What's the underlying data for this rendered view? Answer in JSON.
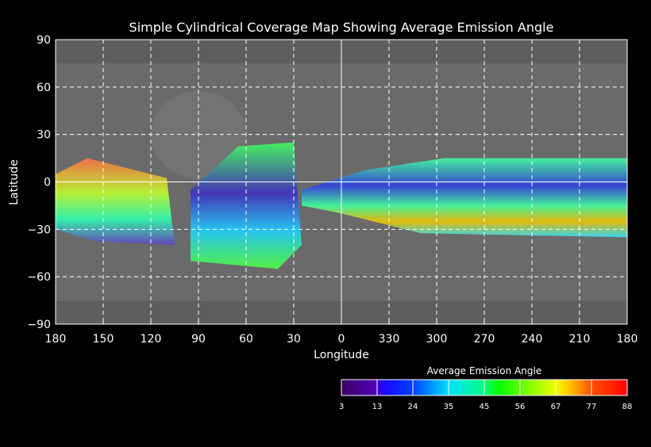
{
  "chart_data": {
    "type": "heatmap",
    "title": "Simple Cylindrical Coverage Map Showing Average Emission Angle",
    "xlabel": "Longitude",
    "ylabel": "Latitude",
    "xlim": [
      180,
      -180
    ],
    "ylim": [
      -90,
      90
    ],
    "x_ticks": [
      "180",
      "150",
      "120",
      "90",
      "60",
      "30",
      "0",
      "330",
      "300",
      "270",
      "240",
      "210",
      "180"
    ],
    "y_ticks": [
      "90",
      "60",
      "30",
      "0",
      "-30",
      "-60",
      "-90"
    ],
    "y_tick_values": [
      90,
      60,
      30,
      0,
      -30,
      -60,
      -90
    ],
    "grid": true,
    "colorbar": {
      "title": "Average Emission Angle",
      "ticks": [
        "3",
        "13",
        "24",
        "35",
        "45",
        "56",
        "67",
        "77",
        "88"
      ],
      "colors": [
        "#3a0060",
        "#0000ff",
        "#00a0ff",
        "#00ffd0",
        "#00ff00",
        "#c0ff00",
        "#ffa000",
        "#ff0000"
      ]
    },
    "coverage_regions": [
      {
        "lon_west": 180,
        "lon_east": 110,
        "lat_top": 15,
        "lat_bottom": -40,
        "mean_angle": 50
      },
      {
        "lon_west": 95,
        "lon_east": 30,
        "lat_top": 25,
        "lat_bottom": -55,
        "mean_angle": 35
      },
      {
        "lon_west": 25,
        "lon_east": -180,
        "lat_top": 15,
        "lat_bottom": -35,
        "mean_angle": 40
      }
    ]
  }
}
